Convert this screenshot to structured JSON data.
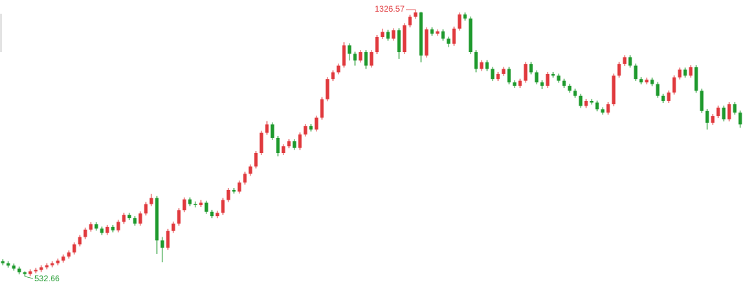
{
  "chart_data": {
    "type": "candlestick",
    "up_color": "#e03a3e",
    "down_color": "#1f9a2e",
    "open": [
      578,
      572,
      565,
      556,
      545,
      540,
      548,
      552,
      560,
      566,
      572,
      580,
      592,
      604,
      628,
      650,
      672,
      688,
      675,
      662,
      680,
      670,
      695,
      716,
      706,
      690,
      720,
      748,
      766,
      640,
      618,
      668,
      690,
      730,
      762,
      748,
      745,
      752,
      725,
      712,
      722,
      760,
      790,
      785,
      812,
      838,
      860,
      900,
      960,
      985,
      945,
      900,
      920,
      935,
      915,
      955,
      980,
      970,
      1005,
      1060,
      1120,
      1140,
      1160,
      1220,
      1195,
      1175,
      1200,
      1160,
      1200,
      1245,
      1260,
      1240,
      1265,
      1200,
      1280,
      1305,
      1318,
      1190,
      1268,
      1255,
      1262,
      1240,
      1225,
      1270,
      1312,
      1300,
      1200,
      1150,
      1170,
      1150,
      1120,
      1135,
      1150,
      1110,
      1100,
      1115,
      1165,
      1140,
      1110,
      1100,
      1135,
      1130,
      1115,
      1100,
      1085,
      1070,
      1040,
      1055,
      1050,
      1030,
      1020,
      1045,
      1130,
      1165,
      1185,
      1160,
      1120,
      1110,
      1118,
      1105,
      1070,
      1055,
      1080,
      1125,
      1148,
      1130,
      1155,
      1085,
      1025,
      990,
      1010,
      1035,
      1000,
      1045,
      1020
    ],
    "high": [
      584,
      578,
      571,
      562,
      548,
      554,
      558,
      566,
      572,
      578,
      586,
      598,
      610,
      634,
      656,
      678,
      694,
      694,
      681,
      686,
      686,
      701,
      722,
      722,
      712,
      726,
      754,
      778,
      772,
      650,
      674,
      696,
      736,
      768,
      768,
      756,
      760,
      758,
      731,
      728,
      766,
      796,
      796,
      818,
      844,
      866,
      906,
      966,
      995,
      991,
      951,
      926,
      941,
      941,
      961,
      986,
      986,
      1011,
      1066,
      1126,
      1146,
      1166,
      1230,
      1226,
      1201,
      1206,
      1206,
      1206,
      1251,
      1270,
      1266,
      1271,
      1271,
      1286,
      1311,
      1326.57,
      1320,
      1274,
      1274,
      1268,
      1268,
      1246,
      1276,
      1318,
      1318,
      1306,
      1206,
      1176,
      1176,
      1156,
      1141,
      1156,
      1156,
      1116,
      1121,
      1171,
      1171,
      1146,
      1116,
      1141,
      1141,
      1136,
      1121,
      1106,
      1091,
      1076,
      1061,
      1061,
      1056,
      1036,
      1051,
      1136,
      1171,
      1191,
      1191,
      1166,
      1126,
      1124,
      1124,
      1111,
      1076,
      1086,
      1131,
      1154,
      1154,
      1161,
      1161,
      1091,
      1031,
      1016,
      1041,
      1041,
      1051,
      1051,
      1026
    ],
    "low": [
      566,
      559,
      550,
      539,
      532.66,
      534,
      542,
      546,
      554,
      560,
      566,
      574,
      586,
      598,
      622,
      644,
      666,
      669,
      656,
      656,
      664,
      664,
      689,
      700,
      684,
      684,
      714,
      742,
      600,
      575,
      612,
      662,
      684,
      724,
      742,
      738,
      739,
      719,
      706,
      706,
      716,
      754,
      779,
      779,
      806,
      832,
      854,
      894,
      954,
      939,
      890,
      894,
      914,
      909,
      909,
      949,
      964,
      964,
      999,
      1054,
      1114,
      1134,
      1154,
      1175,
      1160,
      1169,
      1150,
      1154,
      1194,
      1239,
      1234,
      1234,
      1180,
      1194,
      1274,
      1299,
      1170,
      1184,
      1249,
      1249,
      1234,
      1215,
      1219,
      1264,
      1294,
      1194,
      1140,
      1144,
      1144,
      1114,
      1114,
      1129,
      1104,
      1094,
      1094,
      1109,
      1134,
      1104,
      1090,
      1094,
      1124,
      1109,
      1094,
      1079,
      1064,
      1034,
      1034,
      1044,
      1024,
      1014,
      1014,
      1039,
      1124,
      1159,
      1154,
      1114,
      1104,
      1104,
      1099,
      1064,
      1049,
      1049,
      1074,
      1119,
      1124,
      1124,
      1079,
      1019,
      970,
      984,
      1004,
      994,
      994,
      1014,
      975
    ],
    "close": [
      572,
      565,
      556,
      545,
      540,
      548,
      552,
      560,
      566,
      572,
      580,
      592,
      604,
      628,
      650,
      672,
      688,
      675,
      662,
      680,
      670,
      695,
      716,
      706,
      690,
      720,
      748,
      766,
      640,
      618,
      668,
      690,
      730,
      762,
      748,
      745,
      752,
      725,
      712,
      722,
      760,
      790,
      785,
      812,
      838,
      860,
      900,
      960,
      985,
      945,
      900,
      920,
      935,
      915,
      955,
      980,
      970,
      1005,
      1060,
      1120,
      1140,
      1160,
      1220,
      1195,
      1175,
      1200,
      1160,
      1200,
      1245,
      1260,
      1240,
      1265,
      1200,
      1280,
      1305,
      1318,
      1190,
      1268,
      1255,
      1262,
      1240,
      1225,
      1270,
      1312,
      1300,
      1200,
      1150,
      1170,
      1150,
      1120,
      1135,
      1150,
      1110,
      1100,
      1115,
      1165,
      1140,
      1110,
      1100,
      1135,
      1130,
      1115,
      1100,
      1085,
      1070,
      1040,
      1055,
      1050,
      1030,
      1020,
      1045,
      1130,
      1165,
      1185,
      1160,
      1120,
      1110,
      1118,
      1105,
      1070,
      1055,
      1080,
      1125,
      1148,
      1130,
      1155,
      1085,
      1025,
      990,
      1010,
      1035,
      1000,
      1045,
      1020,
      985
    ],
    "annotations": [
      {
        "value": 1326.57
      },
      {
        "value": 532.66
      }
    ]
  }
}
